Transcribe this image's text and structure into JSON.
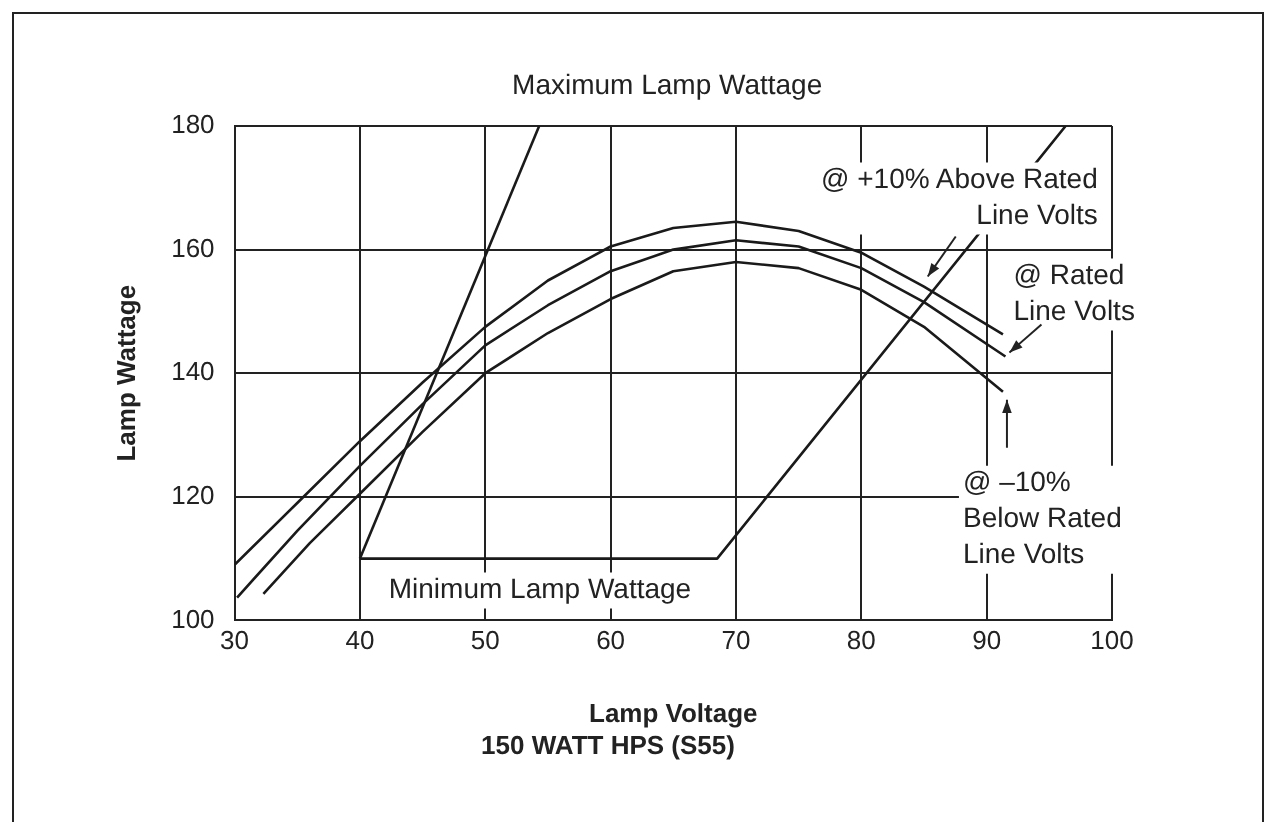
{
  "chart_data": {
    "type": "line",
    "title": "150 WATT HPS (S55)",
    "xlabel": "Lamp Voltage",
    "ylabel": "Lamp Wattage",
    "xlim": [
      30,
      100
    ],
    "xticks": [
      30,
      40,
      50,
      60,
      70,
      80,
      90,
      100
    ],
    "ylim": [
      100,
      180
    ],
    "yticks": [
      100,
      120,
      140,
      160,
      180
    ],
    "grid": true,
    "legend": false,
    "marker": "none",
    "line_style": "solid",
    "series": [
      {
        "color": "#1a1a1a",
        "x": [
          30,
          35,
          40,
          45,
          50,
          55,
          60,
          65,
          70,
          75,
          80,
          85,
          91.3
        ],
        "values": [
          109,
          119,
          129,
          138.5,
          147.5,
          155,
          160.5,
          163.5,
          164.5,
          163,
          159.5,
          154,
          146.3
        ]
      },
      {
        "color": "#1a1a1a",
        "x": [
          30.2,
          35,
          40,
          45,
          50,
          55,
          60,
          65,
          70,
          75,
          80,
          85,
          91.5
        ],
        "values": [
          103.7,
          114.5,
          125,
          135,
          144.5,
          151,
          156.5,
          160,
          161.5,
          160.5,
          157,
          151.5,
          142.7
        ]
      },
      {
        "color": "#1a1a1a",
        "x": [
          32.3,
          36,
          40,
          45,
          50,
          55,
          60,
          65,
          70,
          75,
          80,
          85,
          91.3
        ],
        "values": [
          104.3,
          112.5,
          120.5,
          130.5,
          140,
          146.5,
          152,
          156.5,
          158,
          157,
          153.5,
          147.5,
          137
        ]
      },
      {
        "color": "#1a1a1a",
        "x": [
          40,
          54.3
        ],
        "values": [
          110,
          180
        ]
      },
      {
        "color": "#1a1a1a",
        "x": [
          40,
          68.5,
          96.3
        ],
        "values": [
          110,
          110,
          180
        ]
      }
    ],
    "annotations": [
      {
        "text": "Maximum Lamp Wattage",
        "x": 54.3,
        "y": 180
      },
      {
        "text": "Minimum Lamp Wattage",
        "x": 55,
        "y": 110
      },
      {
        "text": "@ +10% Above Rated\nLine Volts",
        "x": 85.3,
        "y": 155
      },
      {
        "text": "@ Rated\nLine Volts",
        "x": 91.5,
        "y": 142.7
      },
      {
        "text": "@ –10%\nBelow Rated\nLine Volts",
        "x": 91.3,
        "y": 137
      }
    ]
  }
}
